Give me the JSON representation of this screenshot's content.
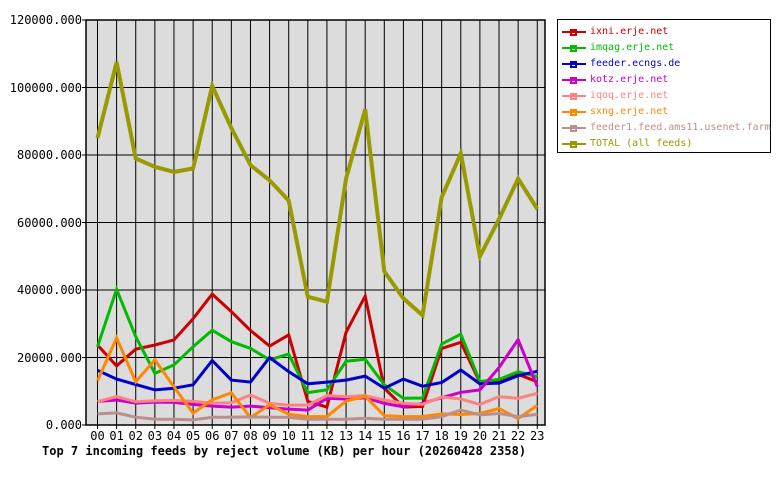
{
  "chart_data": {
    "type": "line",
    "title": "Top 7 incoming feeds by reject volume (KB) per hour (20260428 2358)",
    "xlabel": "",
    "ylabel": "",
    "x_ticks": [
      "00",
      "01",
      "02",
      "03",
      "04",
      "05",
      "06",
      "07",
      "08",
      "09",
      "10",
      "11",
      "12",
      "13",
      "14",
      "15",
      "16",
      "17",
      "18",
      "19",
      "20",
      "21",
      "22",
      "23"
    ],
    "y_ticks": [
      "120000.000",
      "100000.000",
      "80000.000",
      "60000.000",
      "40000.000",
      "20000.000",
      "0.000"
    ],
    "ylim": [
      0,
      120000
    ],
    "grid": true,
    "plot_background": "#dcdcdc",
    "grid_color": "#000000",
    "legend_position": "outside-top-right",
    "series": [
      {
        "name": "ixni.erje.net",
        "color": "#cc0000",
        "values": [
          23700,
          17500,
          22500,
          23700,
          25200,
          31500,
          38800,
          33600,
          28000,
          23400,
          26700,
          7000,
          5300,
          27500,
          38200,
          10900,
          5300,
          5500,
          22700,
          24500,
          12600,
          12900,
          15000,
          12800
        ]
      },
      {
        "name": "imqag.erje.net",
        "color": "#00bb00",
        "values": [
          23200,
          40200,
          26200,
          15300,
          17800,
          23200,
          28100,
          24700,
          22700,
          19300,
          21000,
          9600,
          10400,
          18900,
          19500,
          11900,
          7900,
          8000,
          24000,
          26900,
          12900,
          13500,
          15800,
          14300
        ]
      },
      {
        "name": "feeder.ecngs.de",
        "color": "#0000cc",
        "values": [
          16200,
          13600,
          12000,
          10400,
          10900,
          11900,
          19100,
          13300,
          12700,
          20000,
          15800,
          12200,
          12700,
          13300,
          14500,
          10900,
          13600,
          11500,
          12600,
          16300,
          12200,
          12400,
          14600,
          15900
        ]
      },
      {
        "name": "kotz.erje.net",
        "color": "#cc00cc",
        "values": [
          7000,
          7400,
          6500,
          6800,
          6700,
          6100,
          5600,
          5300,
          5600,
          5100,
          4700,
          4400,
          7900,
          7700,
          8100,
          6400,
          5400,
          6400,
          8100,
          9700,
          10400,
          17000,
          25300,
          11400
        ]
      },
      {
        "name": "iqoq.erje.net",
        "color": "#ff8282",
        "values": [
          6900,
          8400,
          6900,
          7200,
          7300,
          7000,
          6500,
          6600,
          8900,
          6400,
          5900,
          5900,
          8700,
          8400,
          8700,
          7400,
          6400,
          6100,
          8300,
          7700,
          6100,
          8400,
          7900,
          9400
        ]
      },
      {
        "name": "sxng.erje.net",
        "color": "#ff8800",
        "values": [
          13100,
          25800,
          12800,
          19300,
          11300,
          3500,
          7500,
          9500,
          2200,
          6000,
          3200,
          2500,
          2500,
          7100,
          8500,
          2800,
          2500,
          2500,
          3300,
          3100,
          3400,
          4900,
          1900,
          5800
        ]
      },
      {
        "name": "feeder1.feed.ams11.usenet.farm",
        "color": "#bc8f8f",
        "values": [
          3300,
          3600,
          2300,
          1700,
          1700,
          1500,
          2300,
          2300,
          2400,
          2300,
          2300,
          1700,
          1700,
          1700,
          2000,
          1700,
          1700,
          1700,
          2500,
          4400,
          3000,
          3400,
          2500,
          3200
        ]
      },
      {
        "name": "TOTAL (all feeds)",
        "color": "#999900",
        "values": [
          85000,
          107500,
          79000,
          76500,
          75000,
          76000,
          100500,
          88000,
          77000,
          72500,
          66500,
          38000,
          36500,
          73000,
          93500,
          45500,
          37500,
          32500,
          67500,
          80500,
          50000,
          61000,
          73000,
          64000
        ]
      }
    ]
  }
}
